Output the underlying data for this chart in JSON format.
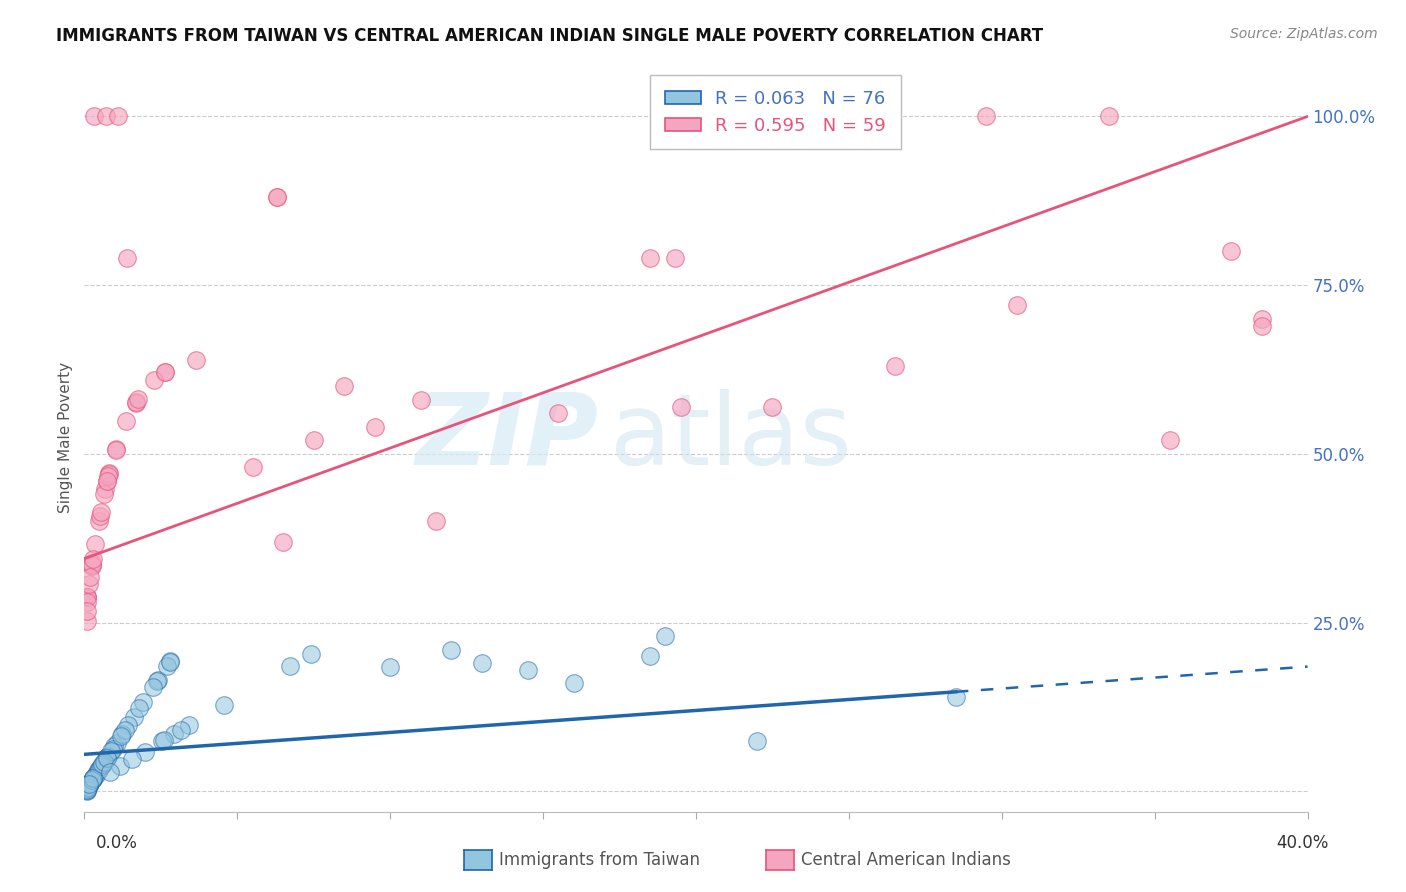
{
  "title": "IMMIGRANTS FROM TAIWAN VS CENTRAL AMERICAN INDIAN SINGLE MALE POVERTY CORRELATION CHART",
  "source": "Source: ZipAtlas.com",
  "ylabel": "Single Male Poverty",
  "xlim": [
    0.0,
    0.4
  ],
  "ylim": [
    -0.03,
    1.08
  ],
  "taiwan_R": 0.063,
  "taiwan_N": 76,
  "central_R": 0.595,
  "central_N": 59,
  "taiwan_color": "#92c5de",
  "central_color": "#f4a6c0",
  "taiwan_line_color": "#2166ac",
  "central_line_color": "#e8537a",
  "taiwan_line_solid_end": 0.285,
  "central_line_y0": 0.345,
  "central_line_y1": 1.0,
  "taiwan_line_y0": 0.055,
  "taiwan_line_y1": 0.185,
  "taiwan_line_dashed_y1": 0.195
}
